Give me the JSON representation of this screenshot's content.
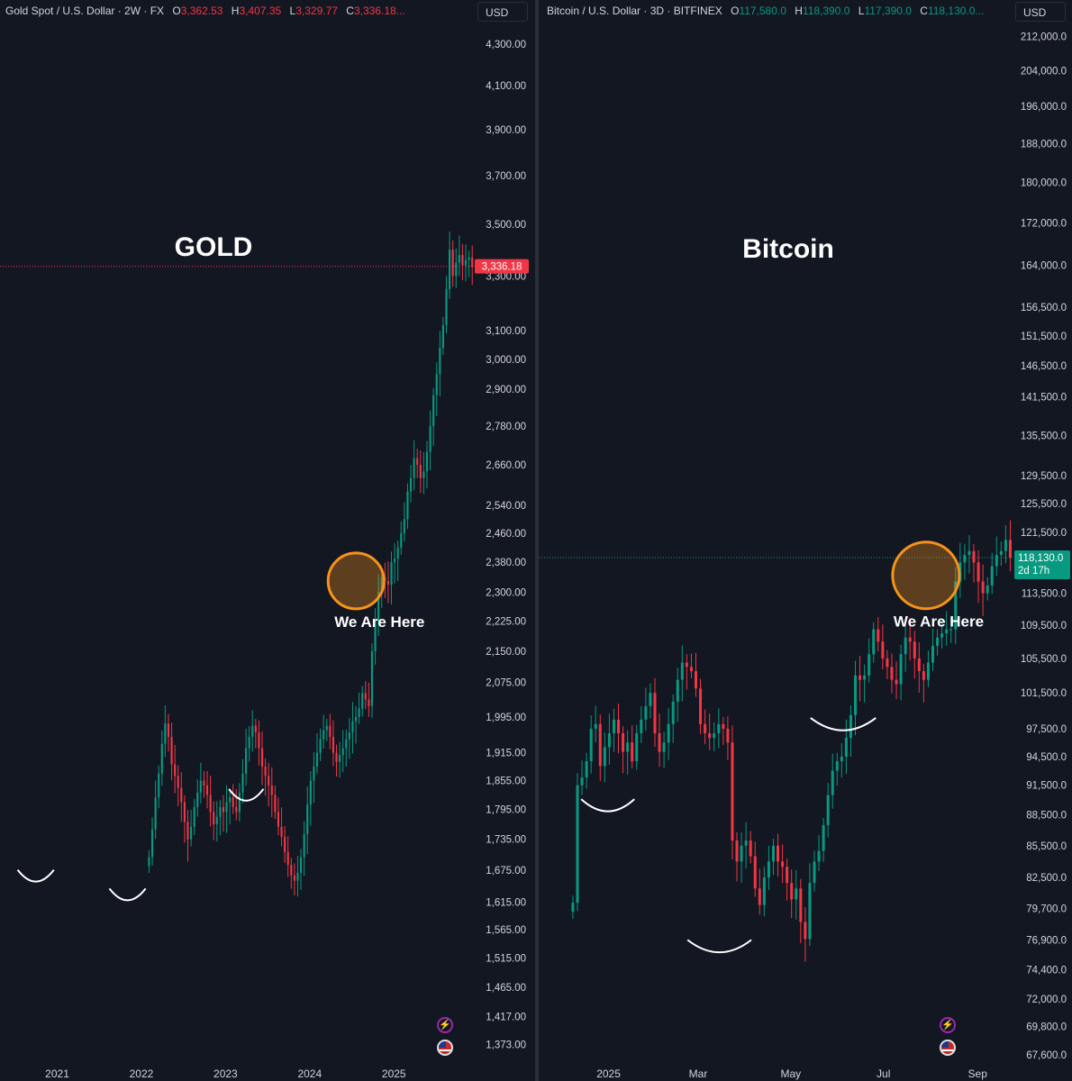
{
  "gold": {
    "header": {
      "symbol": "Gold Spot / U.S. Dollar · 2W · FX",
      "o_label": "O",
      "o_value": "3,362.53",
      "h_label": "H",
      "h_value": "3,407.35",
      "l_label": "L",
      "l_value": "3,329.77",
      "c_label": "C",
      "c_value": "3,336.18..."
    },
    "currency_button": "USD",
    "title": "GOLD",
    "annotation": "We Are Here",
    "price_tag": "3,336.18"
  },
  "bitcoin": {
    "header": {
      "symbol": "Bitcoin / U.S. Dollar · 3D · BITFINEX",
      "o_label": "O",
      "o_value": "117,580.0",
      "h_label": "H",
      "h_value": "118,390.0",
      "l_label": "L",
      "l_value": "117,390.0",
      "c_label": "C",
      "c_value": "118,130.0..."
    },
    "currency_button": "USD",
    "title": "Bitcoin",
    "annotation": "We Are Here",
    "price_tag": "118,130.0",
    "countdown": "2d 17h"
  },
  "colors": {
    "up": "#089981",
    "down": "#f23645",
    "highlight": "#f7931a",
    "background": "#131722"
  },
  "icons": [
    "lightning-icon",
    "us-flag-icon"
  ],
  "chart_data": [
    {
      "type": "candlestick",
      "title": "GOLD",
      "series_name": "Gold Spot / U.S. Dollar",
      "scale": "log",
      "ylim": [
        1340,
        4420
      ],
      "y_ticks": [
        "4,300.00",
        "4,100.00",
        "3,900.00",
        "3,700.00",
        "3,500.00",
        "3,300.00",
        "3,100.00",
        "3,000.00",
        "2,900.00",
        "2,780.00",
        "2,660.00",
        "2,540.00",
        "2,460.00",
        "2,380.00",
        "2,300.00",
        "2,225.00",
        "2,150.00",
        "2,075.00",
        "1,995.00",
        "1,915.00",
        "1,855.00",
        "1,795.00",
        "1,735.00",
        "1,675.00",
        "1,615.00",
        "1,565.00",
        "1,515.00",
        "1,465.00",
        "1,417.00",
        "1,373.00"
      ],
      "y_tick_values": [
        4300,
        4100,
        3900,
        3700,
        3500,
        3300,
        3100,
        3000,
        2900,
        2780,
        2660,
        2540,
        2460,
        2380,
        2300,
        2225,
        2150,
        2075,
        1995,
        1915,
        1855,
        1795,
        1735,
        1675,
        1615,
        1565,
        1515,
        1465,
        1417,
        1373
      ],
      "x_ticks": [
        "2021",
        "2022",
        "2023",
        "2024",
        "2025"
      ],
      "x_tick_values": [
        2021.0,
        2022.0,
        2023.0,
        2024.0,
        2025.0
      ],
      "x_range": [
        2020.32,
        2025.95
      ],
      "interval_years": 0.0384,
      "last_price": 3336.18,
      "highlight_center": [
        2024.55,
        2330
      ],
      "highlight_radius_years": 0.3,
      "bowls": [
        {
          "x_start": 2020.53,
          "x_end": 2020.96,
          "y": 1655
        },
        {
          "x_start": 2021.62,
          "x_end": 2022.05,
          "y": 1620
        },
        {
          "x_start": 2023.04,
          "x_end": 2023.45,
          "y": 1815
        }
      ],
      "closes": [
        1700,
        1755,
        1820,
        1870,
        1935,
        1980,
        1950,
        1890,
        1865,
        1840,
        1810,
        1770,
        1735,
        1760,
        1800,
        1830,
        1855,
        1845,
        1825,
        1790,
        1765,
        1780,
        1800,
        1790,
        1810,
        1820,
        1800,
        1790,
        1830,
        1870,
        1925,
        1950,
        1975,
        1960,
        1925,
        1885,
        1865,
        1845,
        1825,
        1790,
        1760,
        1740,
        1710,
        1685,
        1665,
        1655,
        1670,
        1700,
        1745,
        1805,
        1855,
        1885,
        1915,
        1945,
        1965,
        1975,
        1950,
        1915,
        1895,
        1910,
        1925,
        1945,
        1960,
        1985,
        1995,
        2015,
        2050,
        2035,
        2020,
        2150,
        2225,
        2300,
        2340,
        2330,
        2320,
        2380,
        2390,
        2420,
        2460,
        2500,
        2580,
        2620,
        2680,
        2660,
        2620,
        2640,
        2700,
        2780,
        2880,
        2950,
        3040,
        3120,
        3250,
        3400,
        3300,
        3350,
        3380,
        3340,
        3360,
        3370,
        3336
      ]
    },
    {
      "type": "candlestick",
      "title": "Bitcoin",
      "series_name": "Bitcoin / U.S. Dollar",
      "scale": "log",
      "ylim": [
        66800,
        216000
      ],
      "y_ticks": [
        "212,000.0",
        "204,000.0",
        "196,000.0",
        "188,000.0",
        "180,000.0",
        "172,000.0",
        "164,000.0",
        "156,500.0",
        "151,500.0",
        "146,500.0",
        "141,500.0",
        "135,500.0",
        "129,500.0",
        "125,500.0",
        "121,500.0",
        "113,500.0",
        "109,500.0",
        "105,500.0",
        "101,500.0",
        "97,500.0",
        "94,500.0",
        "91,500.0",
        "88,500.0",
        "85,500.0",
        "82,500.0",
        "79,700.0",
        "76,900.0",
        "74,400.0",
        "72,000.0",
        "69,800.0",
        "67,600.0"
      ],
      "y_tick_values": [
        212000,
        204000,
        196000,
        188000,
        180000,
        172000,
        164000,
        156500,
        151500,
        146500,
        141500,
        135500,
        129500,
        125500,
        121500,
        113500,
        109500,
        105500,
        101500,
        97500,
        94500,
        91500,
        88500,
        85500,
        82500,
        79700,
        76900,
        74400,
        72000,
        69800,
        67600
      ],
      "x_ticks": [
        "2025",
        "Mar",
        "May",
        "Jul",
        "Sep"
      ],
      "x_tick_values": [
        "2025-01-01",
        "2025-03-01",
        "2025-05-01",
        "2025-07-01",
        "2025-09-01"
      ],
      "x_range": [
        "2024-11-16",
        "2025-09-24"
      ],
      "interval_days": 3,
      "last_price": 118130,
      "highlight_center": [
        "2025-07-29",
        115800
      ],
      "highlight_radius_days": 11,
      "bowls": [
        {
          "x_start": "2024-12-14",
          "x_end": "2025-01-18",
          "y": 89000
        },
        {
          "x_start": "2025-02-22",
          "x_end": "2025-04-05",
          "y": 76000
        },
        {
          "x_start": "2025-05-14",
          "x_end": "2025-06-26",
          "y": 97500
        }
      ],
      "closes": [
        80200,
        91500,
        92300,
        94000,
        97500,
        98000,
        93500,
        95500,
        97000,
        98500,
        97000,
        95000,
        96000,
        94000,
        97000,
        98500,
        100000,
        101500,
        97000,
        95000,
        96000,
        98000,
        100500,
        103000,
        105000,
        104500,
        104000,
        102000,
        98000,
        97000,
        96500,
        97000,
        98000,
        97500,
        96000,
        86000,
        84000,
        85500,
        86000,
        84500,
        81500,
        80000,
        82500,
        84000,
        85500,
        84000,
        83500,
        82000,
        80500,
        81500,
        78500,
        77000,
        82000,
        84000,
        85000,
        87500,
        90500,
        93000,
        94000,
        94500,
        96500,
        99000,
        103500,
        103000,
        103500,
        106000,
        109000,
        107500,
        105500,
        104500,
        103000,
        102500,
        106000,
        108000,
        107500,
        105500,
        104000,
        103000,
        105000,
        107000,
        108000,
        108500,
        109000,
        109000,
        115000,
        117500,
        118500,
        119000,
        117500,
        115000,
        113500,
        114500,
        117000,
        118500,
        119000,
        120500,
        118130
      ]
    }
  ]
}
